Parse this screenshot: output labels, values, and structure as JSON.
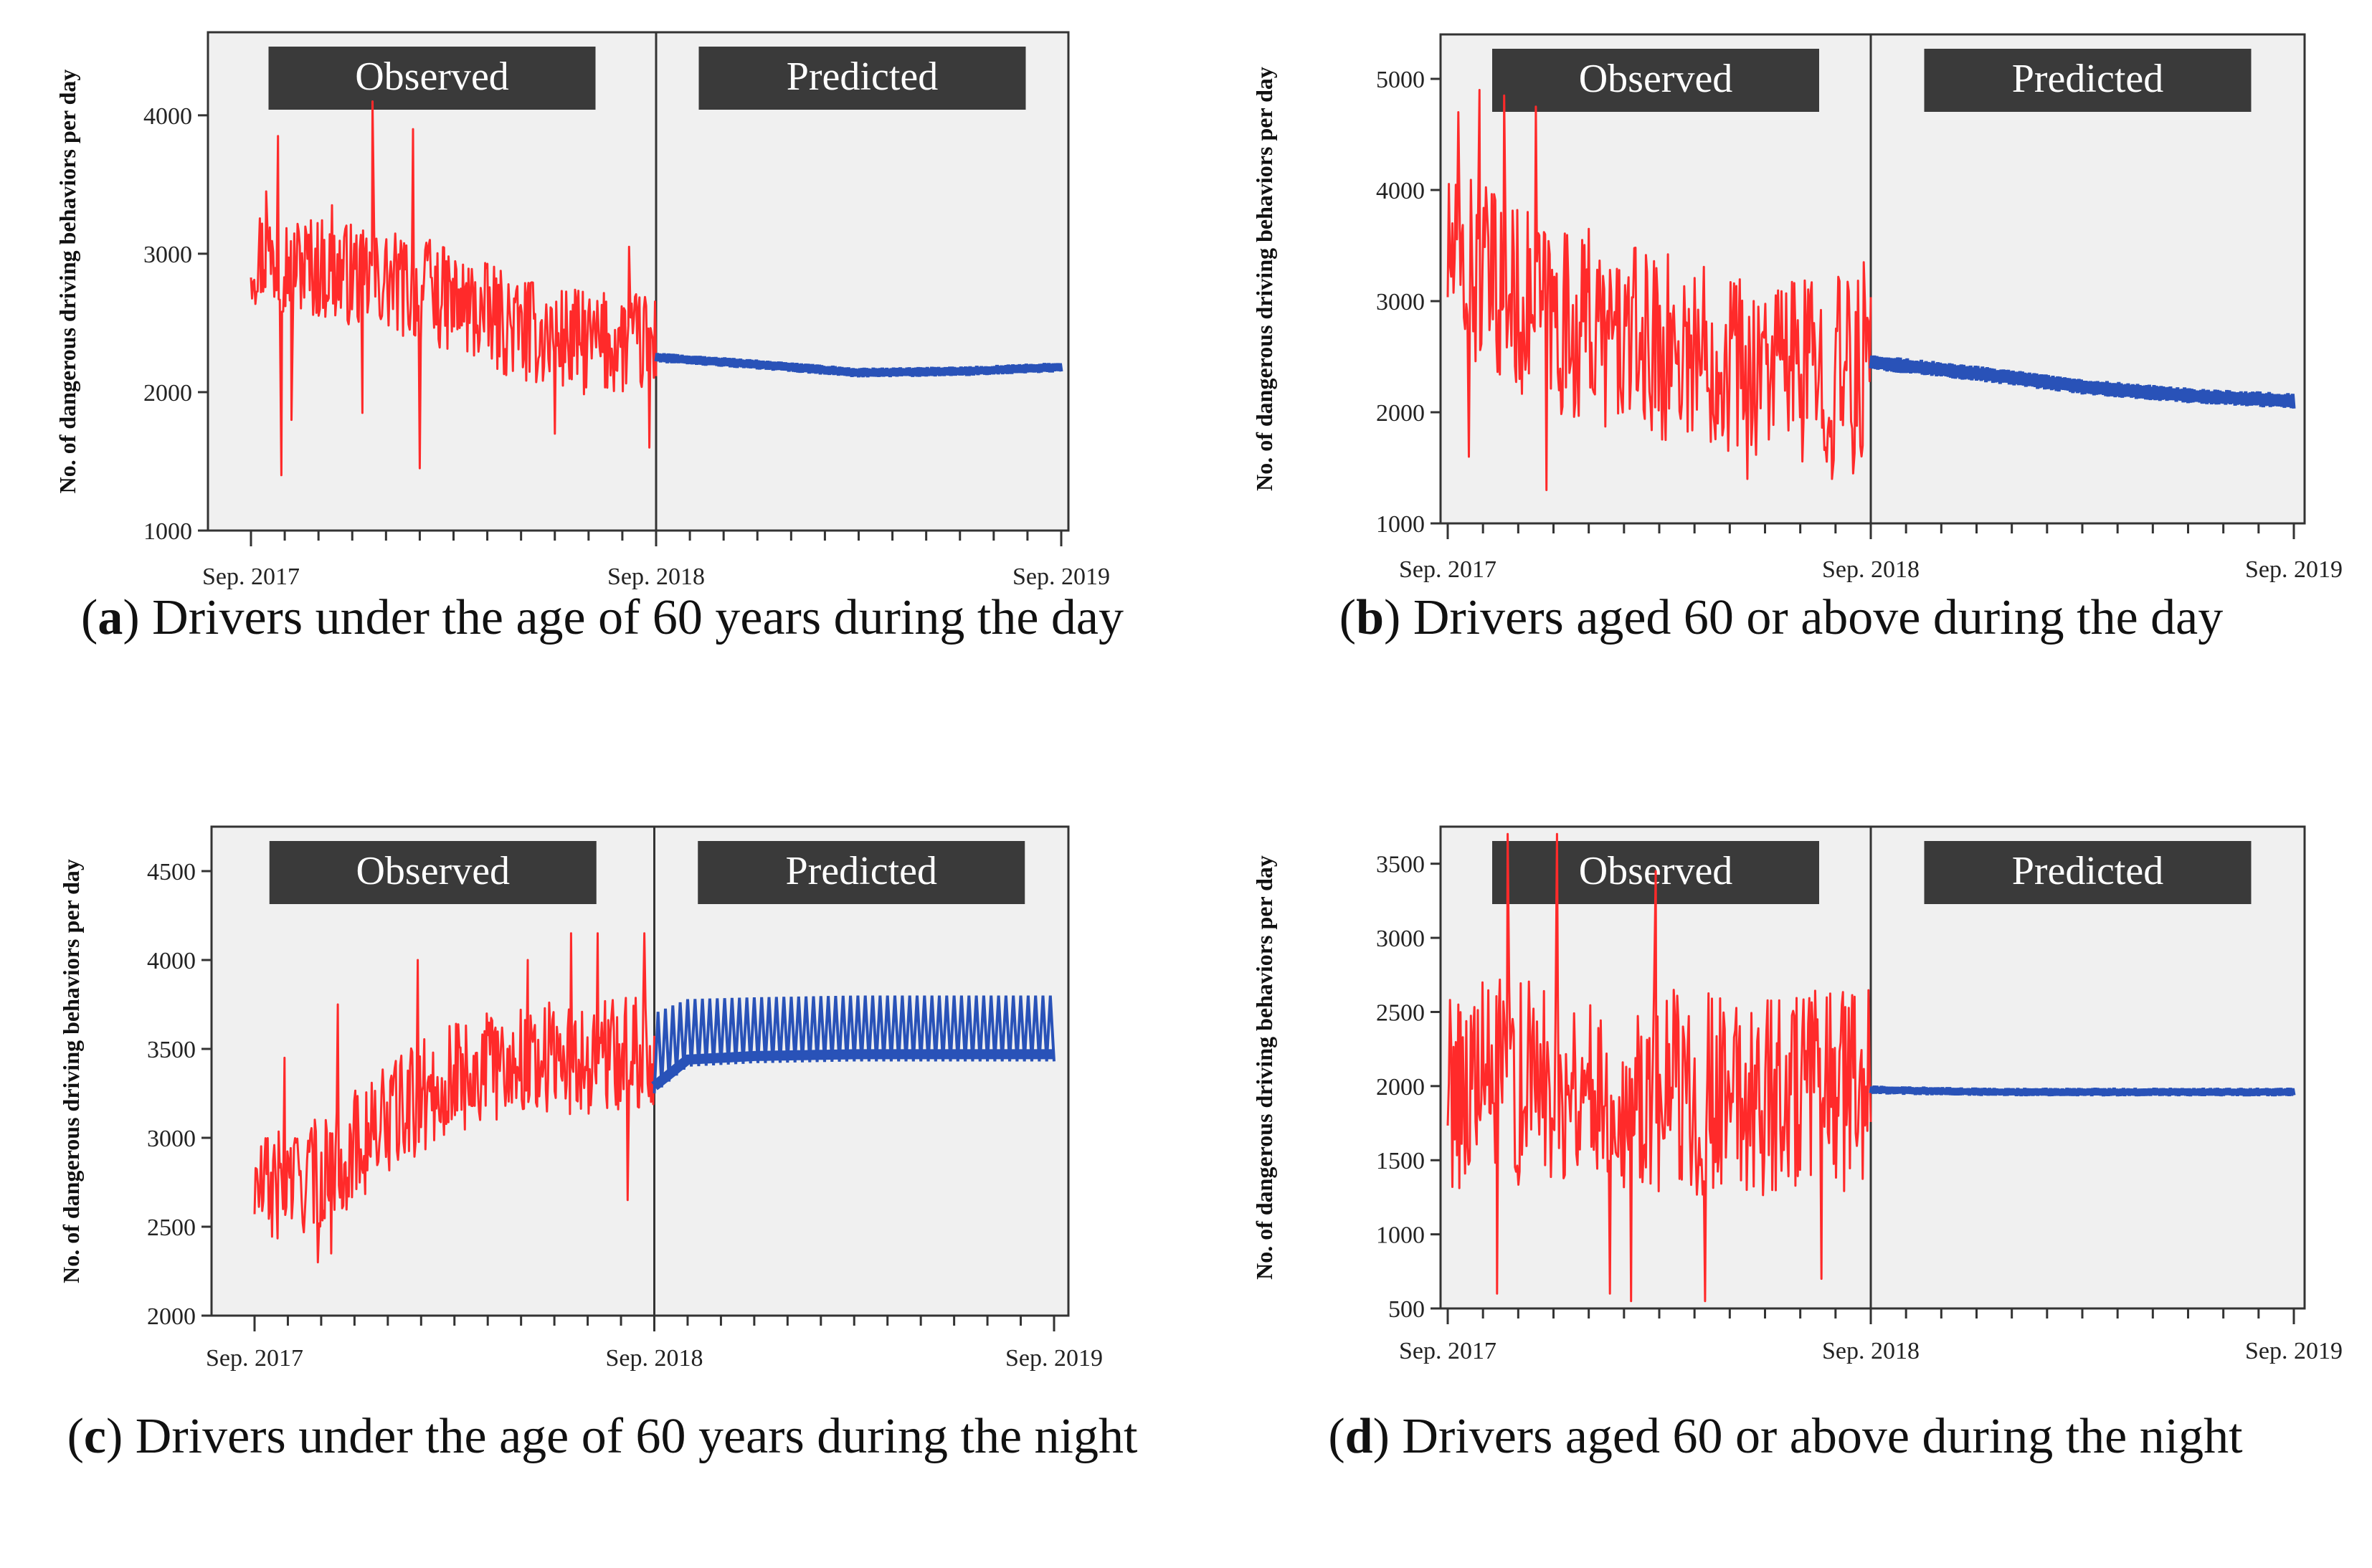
{
  "figure": {
    "captions": [
      {
        "letter": "a",
        "text": "Drivers under the age of 60 years during the day"
      },
      {
        "letter": "b",
        "text": "Drivers aged 60 or above during the day"
      },
      {
        "letter": "c",
        "text": "Drivers under the age of 60 years during the night"
      },
      {
        "letter": "d",
        "text": "Drivers aged 60 or above during the night"
      }
    ]
  },
  "chart_data": [
    {
      "id": "a",
      "type": "line",
      "ylabel": "No. of dangerous driving behaviors per day",
      "ylim": [
        1000,
        4600
      ],
      "yticks": [
        1000,
        2000,
        3000,
        4000
      ],
      "x_labels": [
        "Sep. 2017",
        "Sep. 2018",
        "Sep. 2019"
      ],
      "x_range_months": [
        0,
        24
      ],
      "regions": [
        "Observed",
        "Predicted"
      ],
      "split_month": 12,
      "series": [
        {
          "name": "Observed",
          "color": "#ff2a2a",
          "style": "noisy",
          "trend": [
            [
              0,
              3000
            ],
            [
              2,
              2900
            ],
            [
              4,
              2800
            ],
            [
              6,
              2650
            ],
            [
              8,
              2450
            ],
            [
              10,
              2350
            ],
            [
              12,
              2350
            ]
          ],
          "amplitude": 380,
          "spikes": [
            [
              0.45,
              3450
            ],
            [
              0.8,
              3850
            ],
            [
              0.9,
              1400
            ],
            [
              1.2,
              1800
            ],
            [
              2.4,
              3350
            ],
            [
              3.3,
              1850
            ],
            [
              3.6,
              4100
            ],
            [
              4.8,
              3900
            ],
            [
              5.0,
              1450
            ],
            [
              5.3,
              3100
            ],
            [
              9.0,
              1700
            ],
            [
              11.2,
              3050
            ],
            [
              11.8,
              1600
            ]
          ]
        },
        {
          "name": "Predicted",
          "color": "#2952b8",
          "style": "band",
          "trend": [
            [
              12,
              2250
            ],
            [
              15,
              2200
            ],
            [
              18,
              2140
            ],
            [
              21,
              2150
            ],
            [
              24,
              2180
            ]
          ],
          "band": 35
        }
      ]
    },
    {
      "id": "b",
      "type": "line",
      "ylabel": "No. of dangerous driving behaviors per day",
      "ylim": [
        1000,
        5400
      ],
      "yticks": [
        1000,
        2000,
        3000,
        4000,
        5000
      ],
      "x_labels": [
        "Sep. 2017",
        "Sep. 2018",
        "Sep. 2019"
      ],
      "x_range_months": [
        0,
        24
      ],
      "regions": [
        "Observed",
        "Predicted"
      ],
      "split_month": 12,
      "series": [
        {
          "name": "Observed",
          "color": "#ff2a2a",
          "style": "noisy",
          "trend": [
            [
              0,
              3400
            ],
            [
              2,
              3000
            ],
            [
              4,
              2700
            ],
            [
              6,
              2600
            ],
            [
              8,
              2500
            ],
            [
              10,
              2400
            ],
            [
              12,
              2350
            ]
          ],
          "amplitude": 850,
          "spikes": [
            [
              0.3,
              4700
            ],
            [
              0.6,
              1600
            ],
            [
              0.9,
              4900
            ],
            [
              1.6,
              4850
            ],
            [
              2.5,
              4750
            ],
            [
              2.8,
              1300
            ],
            [
              4.0,
              3650
            ],
            [
              8.5,
              1400
            ],
            [
              10.9,
              1400
            ],
            [
              11.5,
              1450
            ],
            [
              11.8,
              3350
            ]
          ]
        },
        {
          "name": "Predicted",
          "color": "#2952b8",
          "style": "band",
          "trend": [
            [
              12,
              2450
            ],
            [
              15,
              2350
            ],
            [
              18,
              2230
            ],
            [
              21,
              2150
            ],
            [
              24,
              2100
            ]
          ],
          "band": 70
        }
      ]
    },
    {
      "id": "c",
      "type": "line",
      "ylabel": "No. of dangerous driving behaviors per day",
      "ylim": [
        2000,
        4750
      ],
      "yticks": [
        2000,
        2500,
        3000,
        3500,
        4000,
        4500
      ],
      "x_labels": [
        "Sep. 2017",
        "Sep. 2018",
        "Sep. 2019"
      ],
      "x_range_months": [
        0,
        24
      ],
      "regions": [
        "Observed",
        "Predicted"
      ],
      "split_month": 12,
      "series": [
        {
          "name": "Observed",
          "color": "#ff2a2a",
          "style": "noisy",
          "trend": [
            [
              0,
              2700
            ],
            [
              2,
              2800
            ],
            [
              4,
              3100
            ],
            [
              6,
              3350
            ],
            [
              8,
              3450
            ],
            [
              10,
              3450
            ],
            [
              12,
              3500
            ]
          ],
          "amplitude": 320,
          "spikes": [
            [
              0.9,
              3450
            ],
            [
              1.9,
              2300
            ],
            [
              2.3,
              2350
            ],
            [
              2.5,
              3750
            ],
            [
              4.9,
              4000
            ],
            [
              8.2,
              4000
            ],
            [
              9.5,
              4150
            ],
            [
              10.3,
              4150
            ],
            [
              11.2,
              2650
            ],
            [
              11.7,
              4150
            ]
          ]
        },
        {
          "name": "Predicted",
          "color": "#2952b8",
          "style": "oscillating",
          "lower": [
            [
              12,
              3250
            ],
            [
              13,
              3400
            ],
            [
              15,
              3420
            ],
            [
              18,
              3430
            ],
            [
              24,
              3430
            ]
          ],
          "upper": [
            [
              12,
              3700
            ],
            [
              13,
              3780
            ],
            [
              15,
              3790
            ],
            [
              18,
              3800
            ],
            [
              24,
              3800
            ]
          ],
          "cycles_per_month": 4.5
        }
      ]
    },
    {
      "id": "d",
      "type": "line",
      "ylabel": "No. of dangerous driving behaviors per day",
      "ylim": [
        500,
        3750
      ],
      "yticks": [
        500,
        1000,
        1500,
        2000,
        2500,
        3000,
        3500
      ],
      "x_labels": [
        "Sep. 2017",
        "Sep. 2018",
        "Sep. 2019"
      ],
      "x_range_months": [
        0,
        24
      ],
      "regions": [
        "Observed",
        "Predicted"
      ],
      "split_month": 12,
      "series": [
        {
          "name": "Observed",
          "color": "#ff2a2a",
          "style": "noisy",
          "trend": [
            [
              0,
              2000
            ],
            [
              3,
              2050
            ],
            [
              6,
              1950
            ],
            [
              9,
              1950
            ],
            [
              12,
              2000
            ]
          ],
          "amplitude": 700,
          "spikes": [
            [
              0.3,
              2550
            ],
            [
              1.4,
              600
            ],
            [
              1.7,
              3700
            ],
            [
              3.1,
              3700
            ],
            [
              4.6,
              600
            ],
            [
              5.2,
              550
            ],
            [
              5.9,
              3450
            ],
            [
              7.3,
              550
            ],
            [
              10.3,
              1400
            ],
            [
              10.6,
              700
            ]
          ]
        },
        {
          "name": "Predicted",
          "color": "#2952b8",
          "style": "band",
          "trend": [
            [
              12,
              1975
            ],
            [
              14,
              1965
            ],
            [
              16,
              1960
            ],
            [
              20,
              1960
            ],
            [
              24,
              1960
            ]
          ],
          "band": 28
        }
      ]
    }
  ]
}
